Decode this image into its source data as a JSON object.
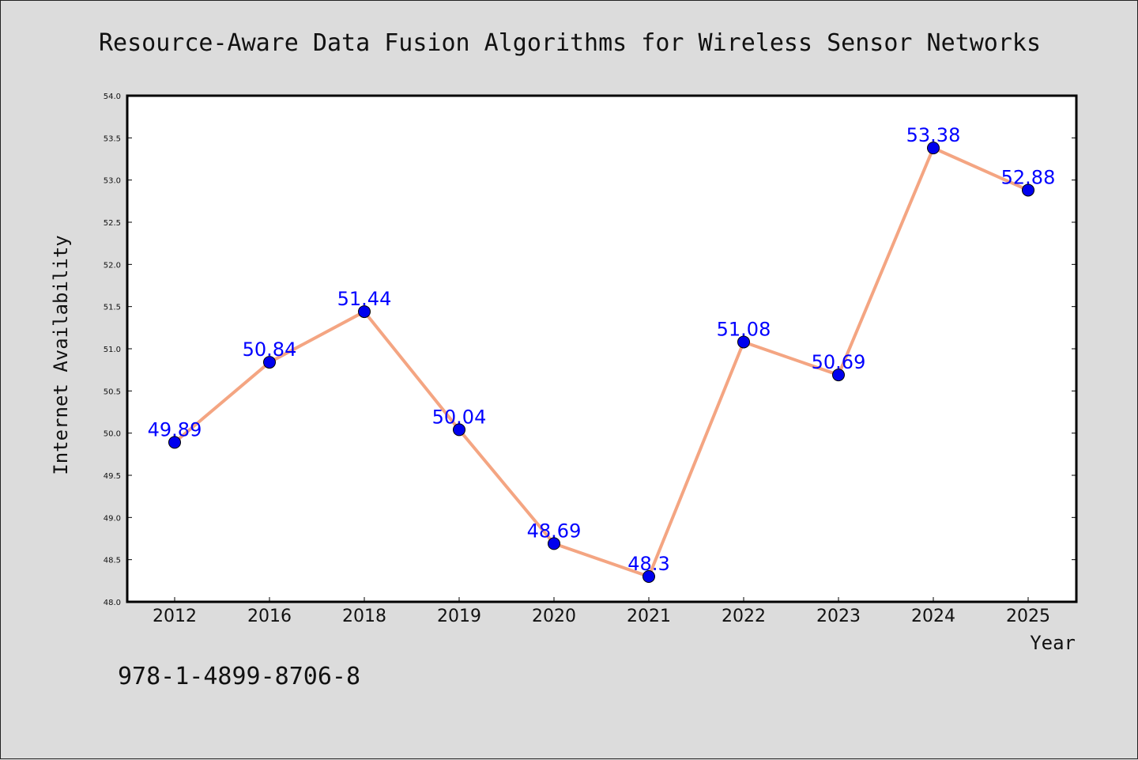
{
  "chart_data": {
    "type": "line",
    "title": "Resource-Aware Data Fusion Algorithms for Wireless Sensor Networks",
    "xlabel": "Year",
    "ylabel": "Internet Availability",
    "categories": [
      "2012",
      "2016",
      "2018",
      "2019",
      "2020",
      "2021",
      "2022",
      "2023",
      "2024",
      "2025"
    ],
    "series": [
      {
        "values": [
          49.89,
          50.84,
          51.44,
          50.04,
          48.69,
          48.3,
          51.08,
          50.69,
          53.38,
          52.88
        ],
        "labels": [
          "49.89",
          "50.84",
          "51.44",
          "50.04",
          "48.69",
          "48.3",
          "51.08",
          "50.69",
          "53.38",
          "52.88"
        ]
      }
    ],
    "ylim": [
      48.0,
      54.0
    ],
    "yticks": [
      "48.0",
      "48.5",
      "49.0",
      "49.5",
      "50.0",
      "50.5",
      "51.0",
      "51.5",
      "52.0",
      "52.5",
      "53.0",
      "53.5",
      "54.0"
    ],
    "grid": false,
    "line_color": "#f4a582",
    "marker_color": "#0000ee",
    "label_color": "#0000ff"
  },
  "footer": {
    "isbn": "978-1-4899-8706-8"
  }
}
